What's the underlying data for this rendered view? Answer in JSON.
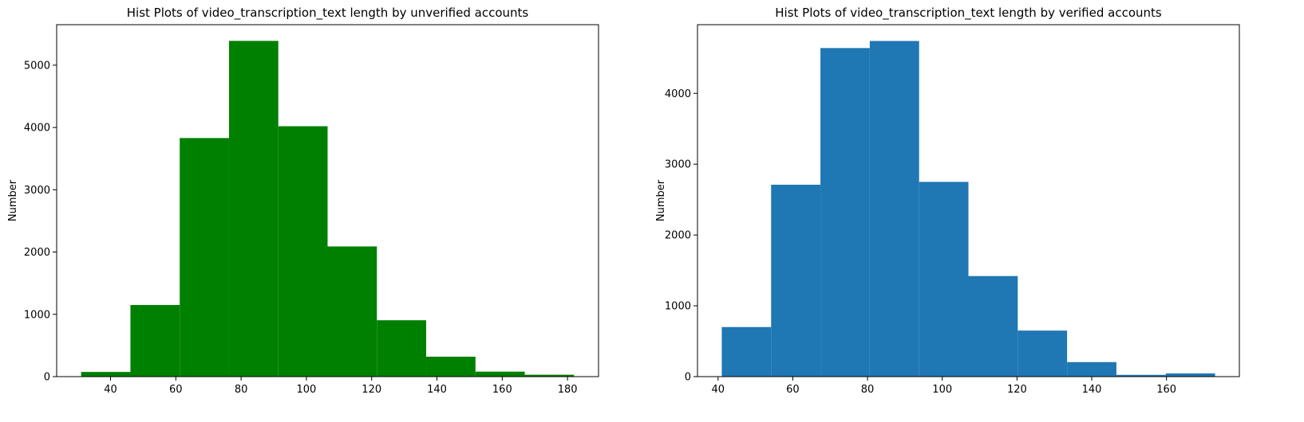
{
  "chart_data": [
    {
      "type": "bar",
      "title": "Hist Plots of video_transcription_text length by unverified accounts",
      "xlabel": "",
      "ylabel": "Number",
      "bar_color": "#008000",
      "grid": false,
      "xlim": [
        23.5,
        189.5
      ],
      "ylim": [
        0,
        5650
      ],
      "xticks": [
        40,
        60,
        80,
        100,
        120,
        140,
        160,
        180
      ],
      "yticks": [
        0,
        1000,
        2000,
        3000,
        4000,
        5000
      ],
      "bin_edges": [
        31,
        46.1,
        61.2,
        76.3,
        91.4,
        106.5,
        121.6,
        136.7,
        151.8,
        166.9,
        182
      ],
      "values": [
        75,
        1150,
        3830,
        5390,
        4020,
        2090,
        905,
        320,
        80,
        30
      ]
    },
    {
      "type": "bar",
      "title": "Hist Plots of video_transcription_text length by verified accounts",
      "xlabel": "",
      "ylabel": "Number",
      "bar_color": "#1f77b4",
      "grid": false,
      "xlim": [
        34.5,
        179.5
      ],
      "ylim": [
        0,
        4970
      ],
      "xticks": [
        40,
        60,
        80,
        100,
        120,
        140,
        160
      ],
      "yticks": [
        0,
        1000,
        2000,
        3000,
        4000
      ],
      "bin_edges": [
        41,
        54.2,
        67.4,
        80.6,
        93.8,
        107,
        120.2,
        133.4,
        146.6,
        159.8,
        173
      ],
      "values": [
        700,
        2710,
        4640,
        4740,
        2750,
        1420,
        650,
        205,
        25,
        45
      ]
    }
  ]
}
